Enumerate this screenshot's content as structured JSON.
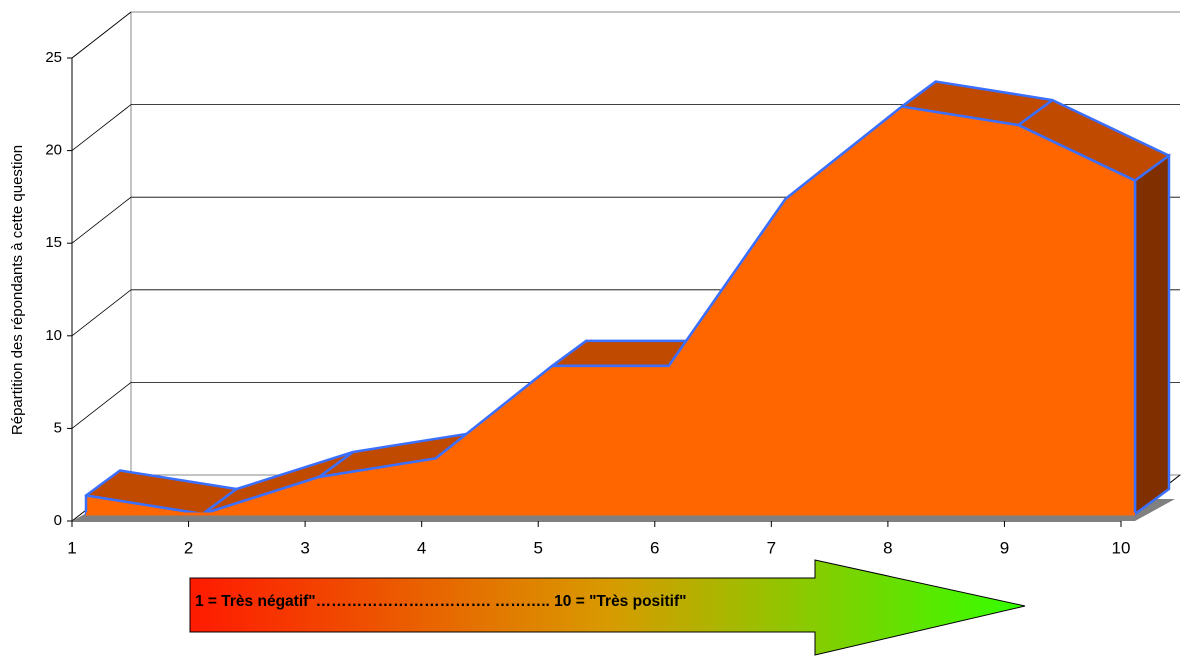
{
  "chart_data": {
    "type": "area",
    "ylabel": "Répartition des répondants à cette question",
    "x": [
      1,
      2,
      3,
      4,
      5,
      6,
      7,
      8,
      9,
      10
    ],
    "xlim": [
      1,
      10
    ],
    "xticks": [
      1,
      2,
      3,
      4,
      5,
      6,
      7,
      8,
      9,
      10
    ],
    "values": [
      1,
      0,
      2,
      3,
      8,
      8,
      17,
      22,
      21,
      18
    ],
    "ylim": [
      0,
      25
    ],
    "yticks": [
      0,
      5,
      10,
      15,
      20,
      25
    ],
    "grid": true,
    "color": "#ff6600",
    "annotation": "1 = Très négatif\"……………………………. ……….. 10 = \"Très positif\""
  }
}
